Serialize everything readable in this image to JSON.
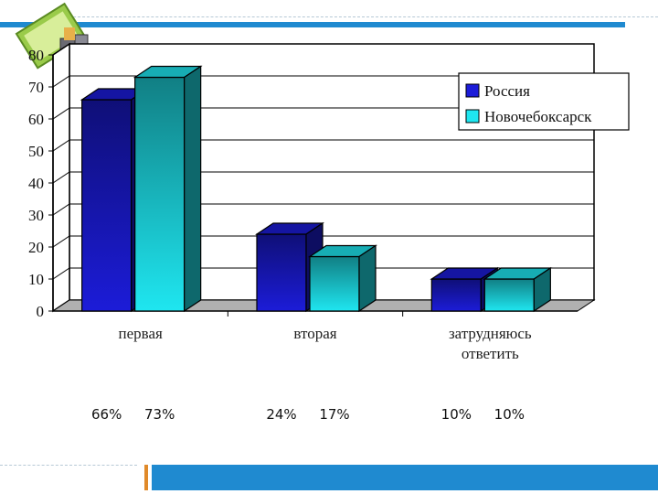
{
  "colors": {
    "series1": "#1c1cd8",
    "series2": "#1fe6f0",
    "slide_bar": "#1f8ad0",
    "slide_accent": "#e08a2a"
  },
  "chart_data": {
    "type": "bar",
    "style": "3d-clustered-column",
    "categories": [
      [
        "первая"
      ],
      [
        "вторая"
      ],
      [
        "затрудняюсь",
        "ответить"
      ]
    ],
    "series": [
      {
        "name": "Россия",
        "values": [
          66,
          24,
          10
        ]
      },
      {
        "name": "Новочебоксарск",
        "values": [
          73,
          17,
          10
        ]
      }
    ],
    "ylim": [
      0,
      80
    ],
    "yticks": [
      0,
      10,
      20,
      30,
      40,
      50,
      60,
      70,
      80
    ],
    "grid": true,
    "legend_position": "right",
    "percent_labels": [
      [
        "66%",
        "73%"
      ],
      [
        "24%",
        "17%"
      ],
      [
        "10%",
        "10%"
      ]
    ]
  }
}
